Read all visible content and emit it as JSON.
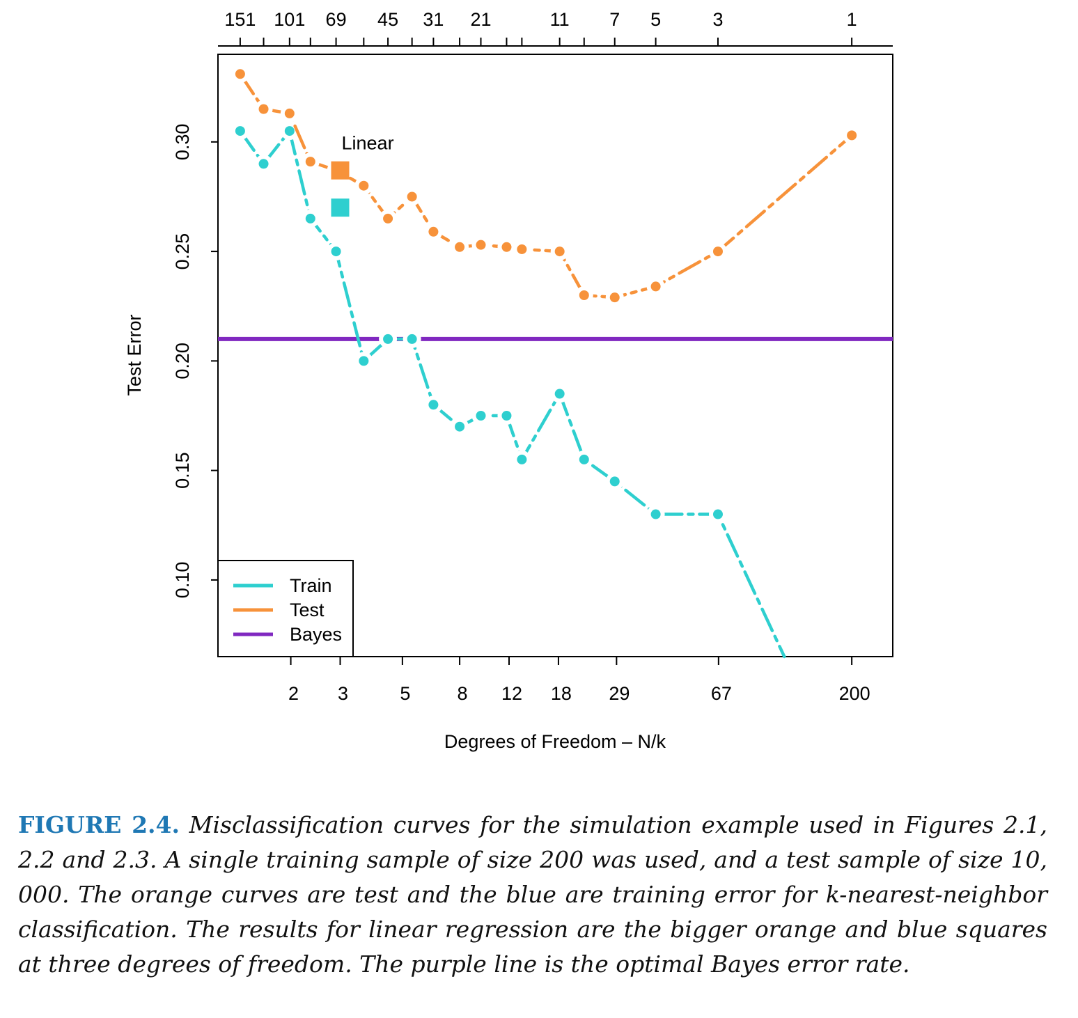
{
  "chart_data": {
    "type": "line",
    "xlabel": "Degrees of Freedom – N/k",
    "ylabel": "Test Error",
    "ylim": [
      0.065,
      0.34
    ],
    "yticks": [
      0.1,
      0.15,
      0.2,
      0.25,
      0.3
    ],
    "ytick_labels": [
      "0.10",
      "0.15",
      "0.20",
      "0.25",
      "0.30"
    ],
    "x_scale": "log",
    "xlim": [
      1.1,
      280
    ],
    "bottom_ticks": [
      2,
      3,
      5,
      8,
      12,
      18,
      29,
      67,
      200
    ],
    "bottom_tick_labels": [
      "2",
      "3",
      "5",
      "8",
      "12",
      "18",
      "29",
      "67",
      "200"
    ],
    "top_axis_label_k": [
      "151",
      "101",
      "69",
      "45",
      "31",
      "21",
      "11",
      "7",
      "5",
      "3",
      "1"
    ],
    "top_axis_label_df": [
      1.32,
      1.98,
      2.9,
      4.44,
      6.45,
      9.52,
      18.18,
      28.57,
      40,
      66.67,
      200
    ],
    "top_axis_minor_k": [
      151,
      125,
      101,
      85,
      69,
      55,
      45,
      37,
      31,
      25,
      21,
      17,
      15,
      11,
      9,
      7,
      5,
      3,
      1
    ],
    "top_axis_minor_df": [
      1.32,
      1.6,
      1.98,
      2.35,
      2.9,
      3.64,
      4.44,
      5.41,
      6.45,
      8,
      9.52,
      11.76,
      13.33,
      18.18,
      22.22,
      28.57,
      40,
      66.67,
      200
    ],
    "series": [
      {
        "name": "Train",
        "color": "#2ECFCF",
        "x": [
          1.32,
          1.6,
          1.98,
          2.35,
          2.9,
          3.64,
          4.44,
          5.41,
          6.45,
          8,
          9.52,
          11.76,
          13.33,
          18.18,
          22.22,
          28.57,
          40,
          66.67,
          115
        ],
        "y": [
          0.305,
          0.29,
          0.305,
          0.265,
          0.25,
          0.2,
          0.21,
          0.21,
          0.18,
          0.17,
          0.175,
          0.175,
          0.155,
          0.185,
          0.155,
          0.145,
          0.13,
          0.13,
          0.065
        ],
        "dots": 18
      },
      {
        "name": "Test",
        "color": "#F7923A",
        "x": [
          1.32,
          1.6,
          1.98,
          2.35,
          2.9,
          3.64,
          4.44,
          5.41,
          6.45,
          8,
          9.52,
          11.76,
          13.33,
          18.18,
          22.22,
          28.57,
          40,
          66.67,
          200
        ],
        "y": [
          0.331,
          0.315,
          0.313,
          0.291,
          0.287,
          0.28,
          0.265,
          0.275,
          0.259,
          0.252,
          0.253,
          0.252,
          0.251,
          0.25,
          0.23,
          0.229,
          0.234,
          0.25,
          0.303
        ],
        "dots": 19
      }
    ],
    "bayes": {
      "name": "Bayes",
      "color": "#8028C0",
      "y": 0.21
    },
    "linear": {
      "label": "Linear",
      "df": 3,
      "test": 0.287,
      "train": 0.27
    },
    "legend": {
      "placement": "bottom-left",
      "entries": [
        "Train",
        "Test",
        "Bayes"
      ]
    }
  },
  "caption": {
    "label": "FIGURE 2.4.",
    "text": "Misclassification curves for the simulation example used in Figures 2.1, 2.2 and 2.3. A single training sample of size 200 was used, and a test sample of size 10, 000. The orange curves are test and the blue are training error for k-nearest-neighbor classification. The results for linear regression are the bigger orange and blue squares at three degrees of freedom. The purple line is the optimal Bayes error rate."
  }
}
